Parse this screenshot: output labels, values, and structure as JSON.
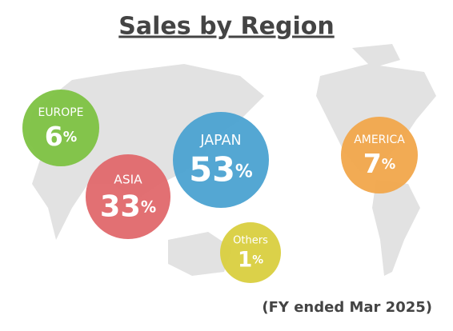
{
  "chart_data": {
    "type": "bubble",
    "title": "Sales by Region",
    "subtitle": "(FY ended Mar 2025)",
    "categories": [
      "EUROPE",
      "ASIA",
      "JAPAN",
      "AMERICA",
      "Others"
    ],
    "values": [
      6,
      33,
      53,
      7,
      1
    ],
    "value_labels": [
      "6%",
      "33%",
      "53%",
      "7%",
      "1%"
    ],
    "colors": [
      "#7dc242",
      "#e0686c",
      "#4ba2d1",
      "#f1a64b",
      "#d9cf3f"
    ]
  }
}
